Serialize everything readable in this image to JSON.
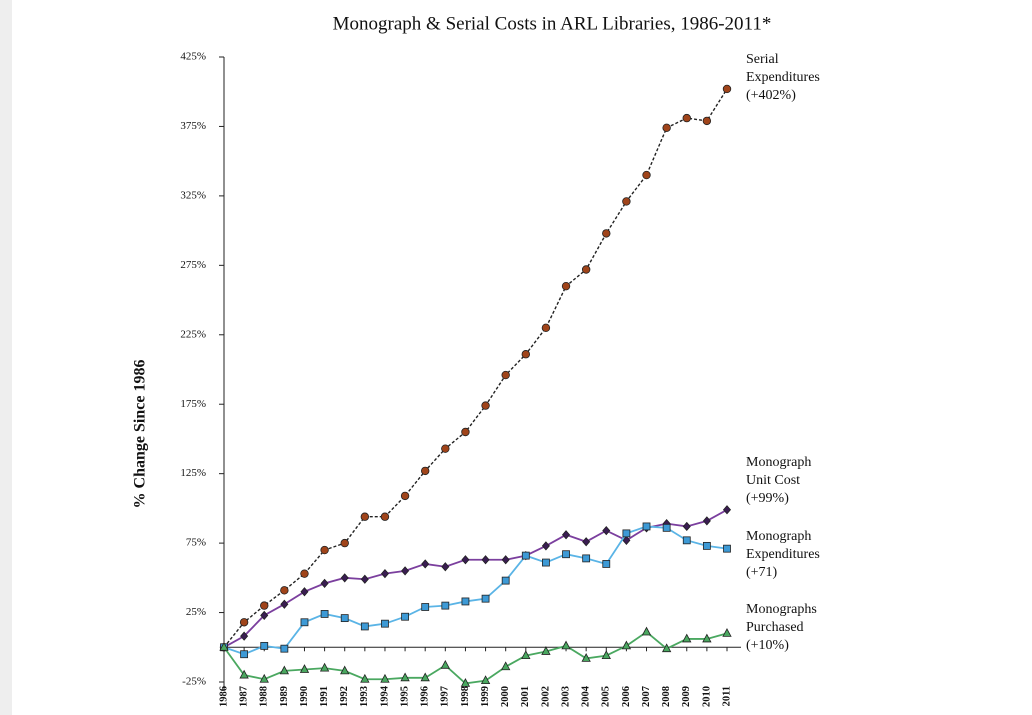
{
  "chart_data": {
    "type": "line",
    "title": "Monograph & Serial Costs in ARL Libraries, 1986-2011*",
    "y_label": "% Change Since 1986",
    "categories": [
      "1986",
      "1987",
      "1988",
      "1989",
      "1990",
      "1991",
      "1992",
      "1993",
      "1994",
      "1995",
      "1996",
      "1997",
      "1998",
      "1999",
      "2000",
      "2001",
      "2002",
      "2003",
      "2004",
      "2005",
      "2006",
      "2007",
      "2008",
      "2009",
      "2010",
      "2011"
    ],
    "ylim": [
      -25,
      425
    ],
    "yticks": [
      {
        "value": -25,
        "label": "-25%"
      },
      {
        "value": 25,
        "label": "25%"
      },
      {
        "value": 75,
        "label": "75%"
      },
      {
        "value": 125,
        "label": "125%"
      },
      {
        "value": 175,
        "label": "175%"
      },
      {
        "value": 225,
        "label": "225%"
      },
      {
        "value": 275,
        "label": "275%"
      },
      {
        "value": 325,
        "label": "325%"
      },
      {
        "value": 375,
        "label": "375%"
      },
      {
        "value": 425,
        "label": "425%"
      }
    ],
    "series": [
      {
        "name": [
          "Serial",
          "Expenditures",
          "(+402%)"
        ],
        "color": "#222222",
        "marker_color": "#a0441a",
        "marker": "circle",
        "line_style": "dashed",
        "values": [
          0,
          18,
          30,
          41,
          53,
          70,
          75,
          94,
          94,
          109,
          127,
          143,
          155,
          174,
          196,
          211,
          230,
          260,
          272,
          298,
          321,
          340,
          374,
          381,
          379,
          402
        ]
      },
      {
        "name": [
          "Monograph",
          "Unit Cost",
          "(+99%)"
        ],
        "color": "#7b3f9e",
        "marker_color": "#3a1d52",
        "marker": "diamond",
        "line_style": "solid",
        "values": [
          0,
          8,
          23,
          31,
          40,
          46,
          50,
          49,
          53,
          55,
          60,
          58,
          63,
          63,
          63,
          66,
          73,
          81,
          76,
          84,
          77,
          86,
          89,
          87,
          91,
          99
        ]
      },
      {
        "name": [
          "Monograph",
          "Expenditures",
          "(+71)"
        ],
        "color": "#5ab4e6",
        "marker_color": "#3d9ad6",
        "marker": "square",
        "line_style": "solid",
        "values": [
          0,
          -5,
          1,
          -1,
          18,
          24,
          21,
          15,
          17,
          22,
          29,
          30,
          33,
          35,
          48,
          66,
          61,
          67,
          64,
          60,
          82,
          87,
          86,
          77,
          73,
          71
        ]
      },
      {
        "name": [
          "Monographs",
          "Purchased",
          "(+10%)"
        ],
        "color": "#4aa860",
        "marker_color": "#4aa860",
        "marker": "triangle",
        "line_style": "solid",
        "values": [
          0,
          -20,
          -23,
          -17,
          -16,
          -15,
          -17,
          -23,
          -23,
          -22,
          -22,
          -13,
          -26,
          -24,
          -14,
          -6,
          -3,
          1,
          -8,
          -6,
          1,
          11,
          -1,
          6,
          6,
          10
        ]
      }
    ]
  }
}
